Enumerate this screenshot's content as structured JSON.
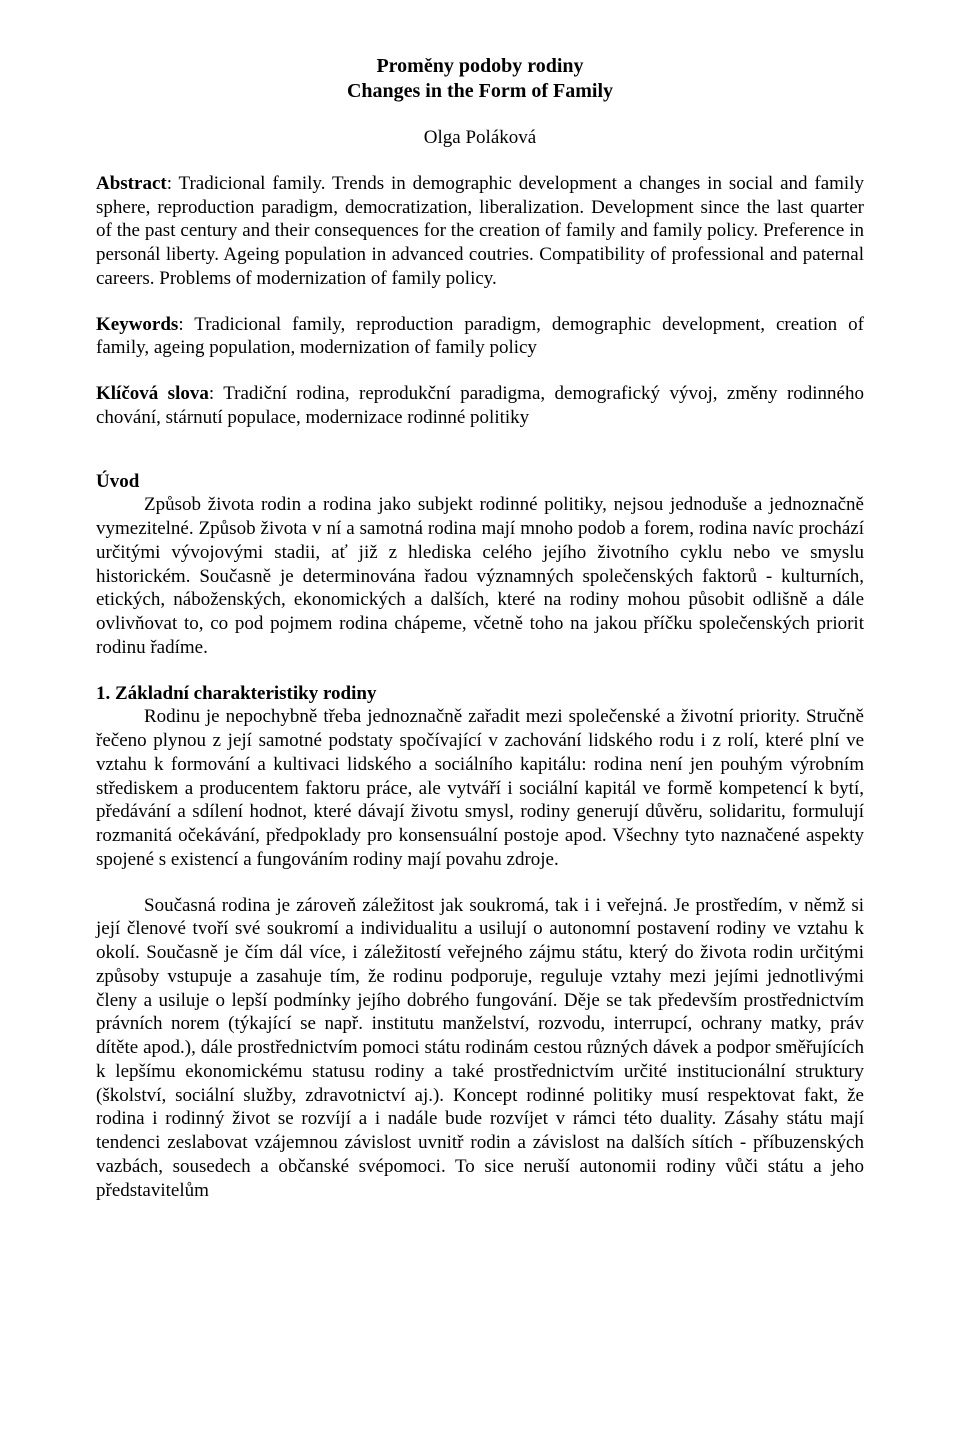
{
  "title_main": "Proměny podoby rodiny",
  "title_sub": "Changes in the Form of Family",
  "author": "Olga Poláková",
  "abstract_label": "Abstract",
  "abstract_body": ": Tradicional family. Trends in demographic development a changes in social and family sphere, reproduction paradigm, democratization, liberalization. Development since the last quarter of the past century and their consequences for the creation of family and family policy. Preference in personál liberty. Ageing population in advanced coutries. Compatibility of professional and paternal careers. Problems of modernization of family policy.",
  "keywords_label": "Keywords",
  "keywords_body": ": Tradicional family, reproduction paradigm, demographic development, creation of family, ageing population, modernization of family policy",
  "klicova_label": "Klíčová slova",
  "klicova_body": ": Tradiční rodina, reprodukční paradigma, demografický vývoj, změny rodinného chování, stárnutí populace, modernizace rodinné politiky",
  "uvod_head": "Úvod",
  "uvod_body": "Způsob života rodin a rodina jako subjekt rodinné politiky, nejsou jednoduše a jednoznačně vymezitelné. Způsob života v ní a samotná rodina mají mnoho podob a forem, rodina navíc prochází určitými vývojovými stadii, ať již z hlediska celého jejího životního cyklu nebo ve smyslu historickém. Současně je determinována řadou významných společenských faktorů - kulturních, etických, náboženských, ekonomických a dalších, které na rodiny mohou působit odlišně a dále ovlivňovat to, co pod pojmem rodina chápeme, včetně toho na jakou příčku společenských priorit rodinu řadíme.",
  "s1_head": "1. Základní charakteristiky rodiny",
  "s1_para1": "Rodinu je nepochybně třeba jednoznačně zařadit mezi společenské a životní priority. Stručně řečeno plynou z její samotné podstaty spočívající v zachování lidského rodu i z rolí, které plní ve vztahu k formování a kultivaci lidského a sociálního kapitálu: rodina není jen pouhým výrobním střediskem a producentem faktoru práce, ale vytváří i sociální kapitál ve formě kompetencí k bytí, předávání a sdílení hodnot, které dávají životu smysl, rodiny generují důvěru, solidaritu, formulují rozmanitá očekávání, předpoklady pro konsensuální postoje apod. Všechny tyto naznačené aspekty spojené s existencí a fungováním rodiny mají povahu zdroje.",
  "s1_para2": "Současná rodina je zároveň záležitost jak soukromá, tak i i veřejná. Je prostředím, v němž si její členové tvoří své soukromí a individualitu a usilují o autonomní postavení rodiny ve vztahu k okolí. Současně je čím dál více, i záležitostí veřejného zájmu státu, který do života rodin určitými způsoby vstupuje a zasahuje tím, že rodinu podporuje, reguluje vztahy mezi jejími jednotlivými členy a usiluje o lepší podmínky jejího dobrého fungování. Děje se tak především prostřednictvím právních norem (týkající se např. institutu manželství, rozvodu, interrupcí, ochrany matky, práv dítěte apod.), dále prostřednictvím pomoci státu rodinám cestou různých dávek a podpor směřujících k lepšímu ekonomickému statusu rodiny a také prostřednictvím určité institucionální struktury (školství, sociální služby, zdravotnictví aj.). Koncept rodinné politiky musí respektovat fakt, že rodina i rodinný život se rozvíjí a i nadále bude rozvíjet v rámci této duality. Zásahy státu mají tendenci zeslabovat vzájemnou závislost uvnitř rodin a závislost na dalších sítích - příbuzenských vazbách, sousedech a občanské svépomoci. To sice neruší autonomii rodiny vůči státu a jeho představitelům"
}
